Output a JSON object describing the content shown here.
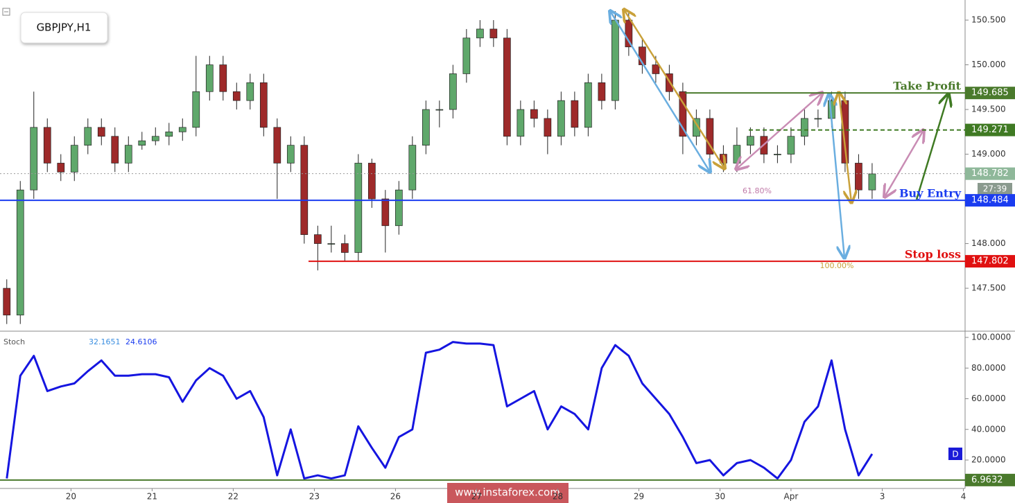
{
  "chart_data": [
    {
      "type": "candlestick",
      "title": "GBPJPY,H1",
      "x": [
        2,
        6,
        10,
        14,
        18,
        22,
        26,
        30,
        34,
        38,
        42,
        46,
        50,
        54,
        58,
        62,
        66,
        70,
        74,
        78,
        82,
        86,
        90,
        94,
        98,
        102,
        106,
        110,
        114,
        118,
        122,
        126,
        130,
        134,
        138,
        142,
        146,
        150,
        154,
        158,
        162,
        166,
        170,
        174,
        178,
        182,
        186,
        190,
        194,
        198,
        202,
        206,
        210,
        214,
        218,
        222,
        226,
        230,
        234,
        238,
        242,
        246,
        250,
        254,
        258
      ],
      "open": [
        147.5,
        147.2,
        148.6,
        149.3,
        148.9,
        148.8,
        149.1,
        149.3,
        149.2,
        148.9,
        149.1,
        149.15,
        149.2,
        149.25,
        149.3,
        149.7,
        150.0,
        149.7,
        149.6,
        149.8,
        149.3,
        148.9,
        149.1,
        148.1,
        148.0,
        148.0,
        147.9,
        148.9,
        148.5,
        148.2,
        148.6,
        149.1,
        149.5,
        149.5,
        149.9,
        150.3,
        150.4,
        150.3,
        149.2,
        149.5,
        149.4,
        149.2,
        149.6,
        149.3,
        149.8,
        149.6,
        150.5,
        150.2,
        150.0,
        149.9,
        149.7,
        149.2,
        149.4,
        149.0,
        148.9,
        149.1,
        149.2,
        149.0,
        149.0,
        149.2,
        149.4,
        149.4,
        149.6,
        148.9,
        148.6
      ],
      "high": [
        147.6,
        148.7,
        149.7,
        149.4,
        149.0,
        149.2,
        149.4,
        149.4,
        149.3,
        149.2,
        149.25,
        149.3,
        149.35,
        149.4,
        150.1,
        150.1,
        150.1,
        149.8,
        149.9,
        149.9,
        149.4,
        149.2,
        149.2,
        148.2,
        148.2,
        148.1,
        149.0,
        148.95,
        148.6,
        148.7,
        149.2,
        149.6,
        149.6,
        150.0,
        150.4,
        150.5,
        150.5,
        150.4,
        149.6,
        149.6,
        149.5,
        149.7,
        149.7,
        149.9,
        149.9,
        150.6,
        150.6,
        150.3,
        150.1,
        150.0,
        149.8,
        149.5,
        149.5,
        149.1,
        149.3,
        149.3,
        149.3,
        149.1,
        149.3,
        149.5,
        149.5,
        149.7,
        149.7,
        149.0,
        148.9
      ],
      "low": [
        147.1,
        147.1,
        148.5,
        148.8,
        148.7,
        148.7,
        149.0,
        149.1,
        148.8,
        148.8,
        149.05,
        149.1,
        149.1,
        149.15,
        149.2,
        149.6,
        149.6,
        149.5,
        149.5,
        149.2,
        148.5,
        148.8,
        148.0,
        147.7,
        147.9,
        147.8,
        147.8,
        148.4,
        147.9,
        148.1,
        148.5,
        149.0,
        149.3,
        149.4,
        149.8,
        150.2,
        150.2,
        149.1,
        149.1,
        149.3,
        149.0,
        149.1,
        149.2,
        149.2,
        149.5,
        149.5,
        150.1,
        149.9,
        149.8,
        149.6,
        149.0,
        149.1,
        148.9,
        148.8,
        148.8,
        149.0,
        148.9,
        148.9,
        148.9,
        149.1,
        149.3,
        149.3,
        148.8,
        148.5,
        148.5
      ],
      "close": [
        147.2,
        148.6,
        149.3,
        148.9,
        148.8,
        149.1,
        149.3,
        149.2,
        148.9,
        149.1,
        149.15,
        149.2,
        149.25,
        149.3,
        149.7,
        150.0,
        149.7,
        149.6,
        149.8,
        149.3,
        148.9,
        149.1,
        148.1,
        148.0,
        148.0,
        147.9,
        148.9,
        148.5,
        148.2,
        148.6,
        149.1,
        149.5,
        149.5,
        149.9,
        150.3,
        150.4,
        150.3,
        149.2,
        149.5,
        149.4,
        149.2,
        149.6,
        149.3,
        149.8,
        149.6,
        150.5,
        150.2,
        150.0,
        149.9,
        149.7,
        149.2,
        149.4,
        149.0,
        148.9,
        149.1,
        149.2,
        149.0,
        149.0,
        149.2,
        149.4,
        149.4,
        149.6,
        148.9,
        148.6,
        148.78
      ],
      "up_color": "#5fa86b",
      "down_color": "#9e2a2a",
      "xlim": [
        0,
        285.5
      ],
      "ylim": [
        147.02,
        150.725
      ],
      "yticks": [
        {
          "value": 150.5,
          "label": "150.500"
        },
        {
          "value": 150,
          "label": "150.000"
        },
        {
          "value": 149.5,
          "label": "149.500"
        },
        {
          "value": 149,
          "label": "149.000"
        },
        {
          "value": 148,
          "label": "148.000"
        },
        {
          "value": 147.5,
          "label": "147.500"
        }
      ],
      "xticks": [
        {
          "value": 21,
          "label": "20"
        },
        {
          "value": 45,
          "label": "21"
        },
        {
          "value": 69,
          "label": "22"
        },
        {
          "value": 93,
          "label": "23"
        },
        {
          "value": 117,
          "label": "26"
        },
        {
          "value": 141,
          "label": "27"
        },
        {
          "value": 165,
          "label": "28"
        },
        {
          "value": 189,
          "label": "29"
        },
        {
          "value": 213,
          "label": "30"
        },
        {
          "value": 234,
          "label": "Apr"
        },
        {
          "value": 261,
          "label": "3"
        },
        {
          "value": 285,
          "label": "4"
        }
      ],
      "levels": [
        {
          "name": "Take Profit",
          "value": 149.685,
          "color": "#4a7a2c",
          "style": "solid"
        },
        {
          "value": 149.271,
          "color": "#3f7a23",
          "style": "dashed"
        },
        {
          "value": 148.782,
          "color": "#8fb89a",
          "style": "dotted"
        },
        {
          "name": "Buy Entry",
          "value": 148.484,
          "color": "#1a3cf0",
          "style": "solid"
        },
        {
          "name": "Stop loss",
          "value": 147.802,
          "color": "#e01010",
          "style": "solid"
        }
      ],
      "annotations": [
        "61.80%",
        "100.00%"
      ],
      "countdown": "27:39",
      "watermark": "www.instaforex.com"
    },
    {
      "type": "line",
      "name": "Stoch",
      "k_value": 32.1651,
      "d_value": 24.6106,
      "marker": "D",
      "x": [
        2,
        6,
        10,
        14,
        18,
        22,
        26,
        30,
        34,
        38,
        42,
        46,
        50,
        54,
        58,
        62,
        66,
        70,
        74,
        78,
        82,
        86,
        90,
        94,
        98,
        102,
        106,
        110,
        114,
        118,
        122,
        126,
        130,
        134,
        138,
        142,
        146,
        150,
        154,
        158,
        162,
        166,
        170,
        174,
        178,
        182,
        186,
        190,
        194,
        198,
        202,
        206,
        210,
        214,
        218,
        222,
        226,
        230,
        234,
        238,
        242,
        246,
        250,
        254,
        258
      ],
      "values": [
        8,
        75,
        88,
        65,
        68,
        70,
        78,
        85,
        75,
        75,
        76,
        76,
        74,
        58,
        72,
        80,
        75,
        60,
        65,
        48,
        10,
        40,
        8,
        10,
        8,
        10,
        42,
        28,
        15,
        35,
        40,
        90,
        92,
        97,
        96,
        96,
        95,
        55,
        60,
        65,
        40,
        55,
        50,
        40,
        80,
        95,
        88,
        70,
        60,
        50,
        35,
        18,
        20,
        10,
        18,
        20,
        15,
        8,
        20,
        45,
        55,
        85,
        40,
        10,
        24
      ],
      "color": "#1515e0",
      "xlim": [
        0,
        285.5
      ],
      "ylim": [
        1.47,
        104.07
      ],
      "yticks": [
        {
          "value": 100,
          "label": "100.0000"
        },
        {
          "value": 80,
          "label": "80.0000"
        },
        {
          "value": 60,
          "label": "60.0000"
        },
        {
          "value": 40,
          "label": "40.0000"
        },
        {
          "value": 20,
          "label": "20.0000"
        }
      ],
      "levels": [
        {
          "value": 6.9632,
          "color": "#4a7a2c",
          "style": "solid"
        }
      ]
    }
  ]
}
